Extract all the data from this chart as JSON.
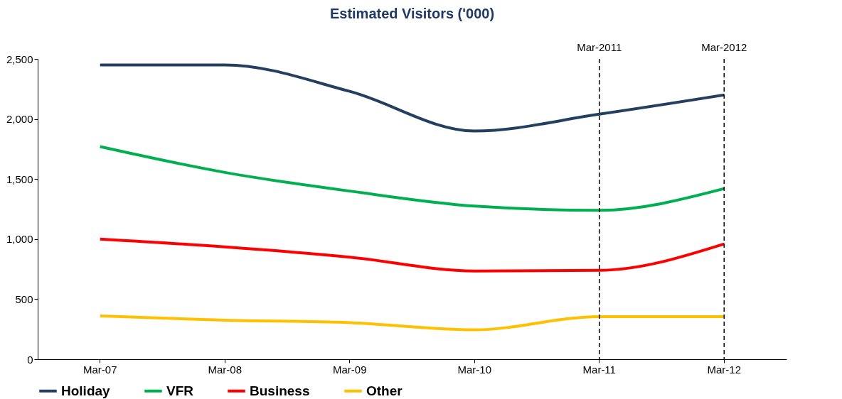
{
  "chart_data": {
    "type": "line",
    "title": "Estimated Visitors ('000)",
    "categories": [
      "Mar-07",
      "Mar-08",
      "Mar-09",
      "Mar-10",
      "Mar-11",
      "Mar-12"
    ],
    "series": [
      {
        "name": "Holiday",
        "color": "#243f60",
        "values": [
          2450,
          2450,
          2230,
          1900,
          2040,
          2200
        ]
      },
      {
        "name": "VFR",
        "color": "#00b050",
        "values": [
          1770,
          1555,
          1400,
          1275,
          1240,
          1420
        ]
      },
      {
        "name": "Business",
        "color": "#ff0000",
        "values": [
          1000,
          935,
          850,
          735,
          740,
          960
        ]
      },
      {
        "name": "Other",
        "color": "#ffc000",
        "values": [
          360,
          325,
          305,
          245,
          355,
          355
        ]
      }
    ],
    "ylim": [
      0,
      2500
    ],
    "yticks": [
      {
        "value": 0,
        "label": "0"
      },
      {
        "value": 500,
        "label": "500"
      },
      {
        "value": 1000,
        "label": "1,000"
      },
      {
        "value": 1500,
        "label": "1,500"
      },
      {
        "value": 2000,
        "label": "2,000"
      },
      {
        "value": 2500,
        "label": "2,500"
      }
    ],
    "ref_lines": [
      {
        "axis": "x",
        "value": "Mar-11",
        "label": "Mar-2011",
        "color": "#000000",
        "line_style": "dashed"
      },
      {
        "axis": "x",
        "value": "Mar-12",
        "label": "Mar-2012",
        "color": "#000000",
        "line_style": "dashed"
      }
    ],
    "legend": "bottom",
    "grid": false,
    "marker": "none",
    "line_style": "solid"
  }
}
